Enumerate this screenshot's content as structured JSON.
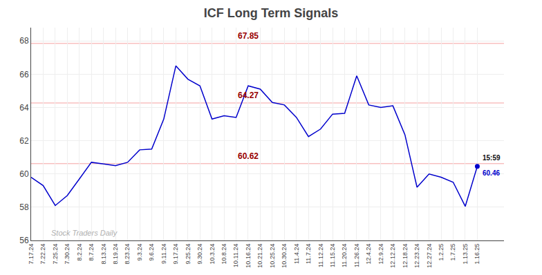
{
  "chart_data": {
    "type": "line",
    "title": "ICF Long Term Signals",
    "categories": [
      "7.17.24",
      "7.22.24",
      "7.25.24",
      "7.30.24",
      "8.2.24",
      "8.7.24",
      "8.13.24",
      "8.19.24",
      "8.23.24",
      "9.3.24",
      "9.6.24",
      "9.11.24",
      "9.17.24",
      "9.25.24",
      "9.30.24",
      "10.3.24",
      "10.8.24",
      "10.11.24",
      "10.16.24",
      "10.21.24",
      "10.25.24",
      "10.30.24",
      "11.4.24",
      "11.7.24",
      "11.12.24",
      "11.15.24",
      "11.20.24",
      "11.26.24",
      "12.4.24",
      "12.9.24",
      "12.12.24",
      "12.18.24",
      "12.23.24",
      "12.27.24",
      "1.2.25",
      "1.7.25",
      "1.13.25",
      "1.16.25"
    ],
    "values": [
      59.8,
      59.3,
      58.1,
      58.7,
      59.7,
      60.7,
      60.6,
      60.5,
      60.7,
      61.45,
      61.5,
      63.3,
      66.5,
      65.7,
      65.3,
      63.3,
      63.5,
      63.4,
      65.3,
      65.1,
      64.3,
      64.15,
      63.4,
      62.25,
      62.7,
      63.6,
      63.65,
      65.9,
      64.15,
      64.0,
      64.1,
      62.35,
      59.2,
      60.0,
      59.8,
      59.5,
      58.05,
      60.46
    ],
    "color": "#0000CC",
    "ylim": [
      56,
      68.8
    ],
    "yticks": [
      56,
      58,
      60,
      62,
      64,
      66,
      68
    ],
    "grid": true,
    "hlines": {
      "values": [
        67.85,
        64.27,
        60.62
      ],
      "color": "#f5a0a0",
      "label_color": "#990000",
      "label_category": "10.16.24"
    },
    "last_point": {
      "category": "1.16.25",
      "value": 60.46,
      "label": "15:59",
      "color": "#0000CC"
    },
    "watermark": {
      "text": "Stock Traders Daily",
      "color": "#b0b0b0"
    }
  }
}
